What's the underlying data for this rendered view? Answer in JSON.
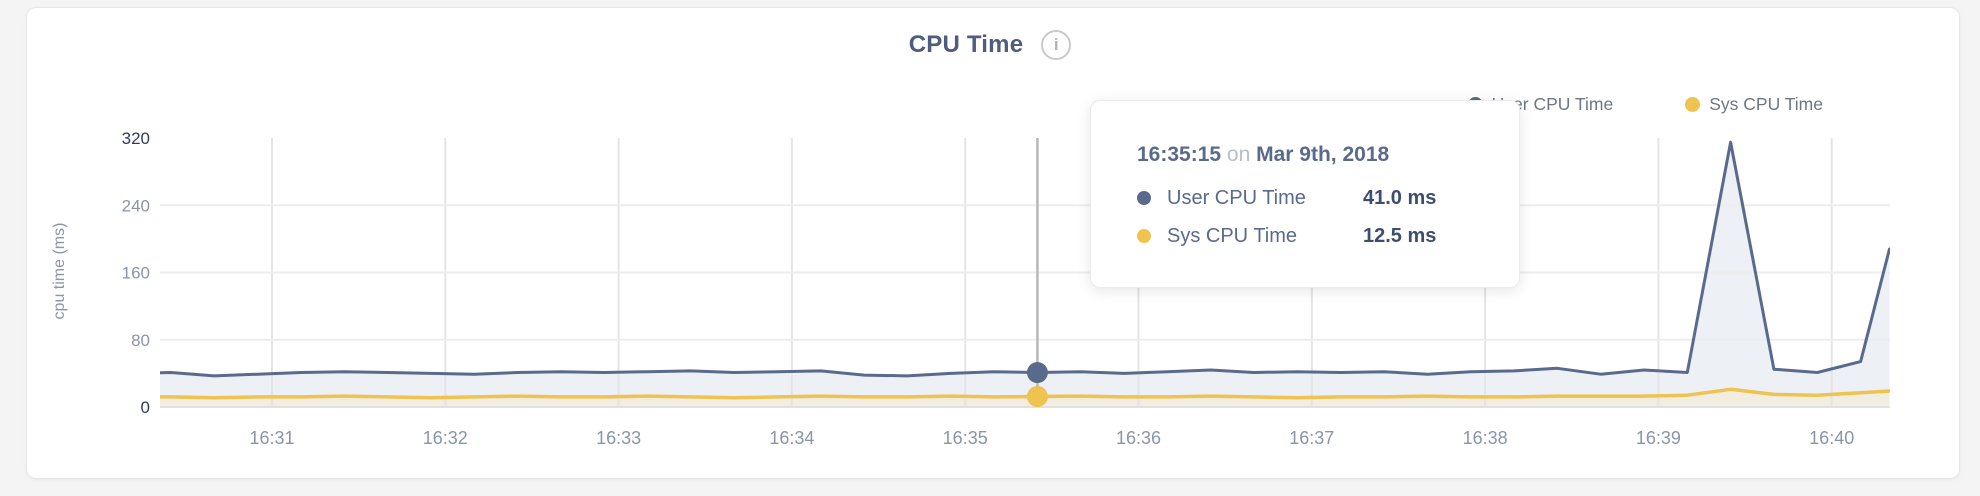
{
  "header": {
    "title": "CPU Time",
    "info_icon": "i"
  },
  "y_axis_title": "cpu time (ms)",
  "legend": {
    "items": [
      {
        "label": "User CPU Time",
        "color": "#5a6a8c"
      },
      {
        "label": "Sys CPU Time",
        "color": "#eec34f"
      }
    ]
  },
  "tooltip": {
    "time": "16:35:15",
    "connector": "on",
    "date": "Mar 9th, 2018",
    "rows": [
      {
        "label": "User CPU Time",
        "value": "41.0 ms",
        "color": "#5a6a8c"
      },
      {
        "label": "Sys CPU Time",
        "value": "12.5 ms",
        "color": "#eec34f"
      }
    ]
  },
  "chart_data": {
    "type": "area",
    "title": "CPU Time",
    "xlabel": "",
    "ylabel": "cpu time (ms)",
    "ylim": [
      0,
      320
    ],
    "y_ticks": [
      0,
      80,
      160,
      240,
      320
    ],
    "x_ticks": [
      "16:31",
      "16:32",
      "16:33",
      "16:34",
      "16:35",
      "16:36",
      "16:37",
      "16:38",
      "16:39",
      "16:40"
    ],
    "grid": true,
    "legend_position": "top-right",
    "hover_index": 21,
    "hover_time": "16:35:15 on Mar 9th, 2018",
    "x": [
      "16:30:00",
      "16:30:15",
      "16:30:30",
      "16:30:45",
      "16:31:00",
      "16:31:15",
      "16:31:30",
      "16:31:45",
      "16:32:00",
      "16:32:15",
      "16:32:30",
      "16:32:45",
      "16:33:00",
      "16:33:15",
      "16:33:30",
      "16:33:45",
      "16:34:00",
      "16:34:15",
      "16:34:30",
      "16:34:45",
      "16:35:00",
      "16:35:15",
      "16:35:30",
      "16:35:45",
      "16:36:00",
      "16:36:15",
      "16:36:30",
      "16:36:45",
      "16:37:00",
      "16:37:15",
      "16:37:30",
      "16:37:45",
      "16:38:00",
      "16:38:15",
      "16:38:30",
      "16:38:45",
      "16:39:00",
      "16:39:15",
      "16:39:30",
      "16:39:45",
      "16:40:00",
      "16:40:10"
    ],
    "series": [
      {
        "name": "User CPU Time",
        "color": "#5a6a8c",
        "fill": "#edf0f5",
        "values": [
          40,
          41,
          37,
          39,
          41,
          42,
          41,
          40,
          39,
          41,
          42,
          41,
          42,
          43,
          41,
          42,
          43,
          38,
          37,
          40,
          42,
          41,
          42,
          40,
          42,
          44,
          41,
          42,
          41,
          42,
          39,
          42,
          43,
          46,
          39,
          44,
          41,
          315,
          45,
          41,
          54,
          188
        ]
      },
      {
        "name": "Sys CPU Time",
        "color": "#eec34f",
        "fill": "#f1ede0",
        "values": [
          12,
          12,
          11,
          12,
          12,
          13,
          12,
          11,
          12,
          13,
          12,
          12,
          13,
          12,
          11,
          12,
          13,
          12,
          12,
          13,
          12,
          12.5,
          13,
          12,
          12,
          13,
          12,
          11,
          12,
          12,
          13,
          12,
          12,
          13,
          13,
          13,
          14,
          21,
          15,
          14,
          17,
          19
        ]
      }
    ]
  }
}
